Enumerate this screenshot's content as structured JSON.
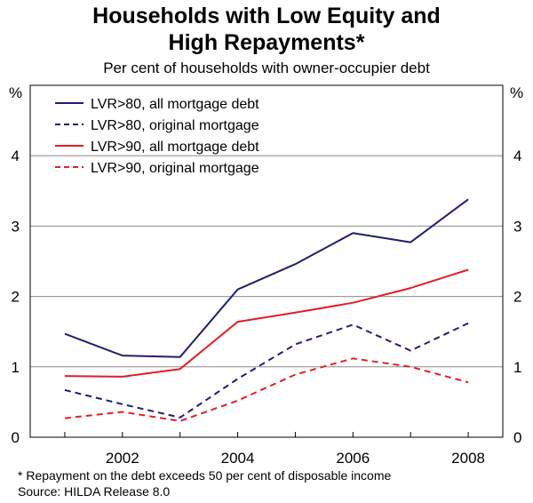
{
  "chart_data": {
    "type": "line",
    "title": [
      "Households with Low Equity and",
      "High Repayments*"
    ],
    "subtitle": "Per cent of households with owner-occupier debt",
    "y_unit_left": "%",
    "y_unit_right": "%",
    "x": [
      2001,
      2002,
      2003,
      2004,
      2005,
      2006,
      2007,
      2008
    ],
    "xlim": [
      2000.4,
      2008.6
    ],
    "x_ticks": [
      2002,
      2004,
      2006,
      2008
    ],
    "ylim": [
      0,
      5
    ],
    "y_ticks": [
      0,
      1,
      2,
      3,
      4
    ],
    "grid": true,
    "legend_position": "top-left",
    "series": [
      {
        "name": "LVR>80, all mortgage debt",
        "color": "#1f1f6e",
        "dash": "solid",
        "values": [
          1.47,
          1.16,
          1.14,
          2.1,
          2.46,
          2.9,
          2.77,
          3.38
        ]
      },
      {
        "name": "LVR>80, original mortgage",
        "color": "#1f1f6e",
        "dash": "dashed",
        "values": [
          0.67,
          0.47,
          0.28,
          0.83,
          1.32,
          1.6,
          1.23,
          1.62
        ]
      },
      {
        "name": "LVR>90, all mortgage debt",
        "color": "#e31e24",
        "dash": "solid",
        "values": [
          0.87,
          0.86,
          0.97,
          1.64,
          1.77,
          1.91,
          2.12,
          2.38
        ]
      },
      {
        "name": "LVR>90, original mortgage",
        "color": "#e31e24",
        "dash": "dashed",
        "values": [
          0.27,
          0.36,
          0.23,
          0.52,
          0.89,
          1.12,
          1.0,
          0.78
        ]
      }
    ]
  },
  "footnotes": [
    "*   Repayment on the debt exceeds 50 per cent of disposable income",
    "Source: HILDA Release 8.0"
  ]
}
